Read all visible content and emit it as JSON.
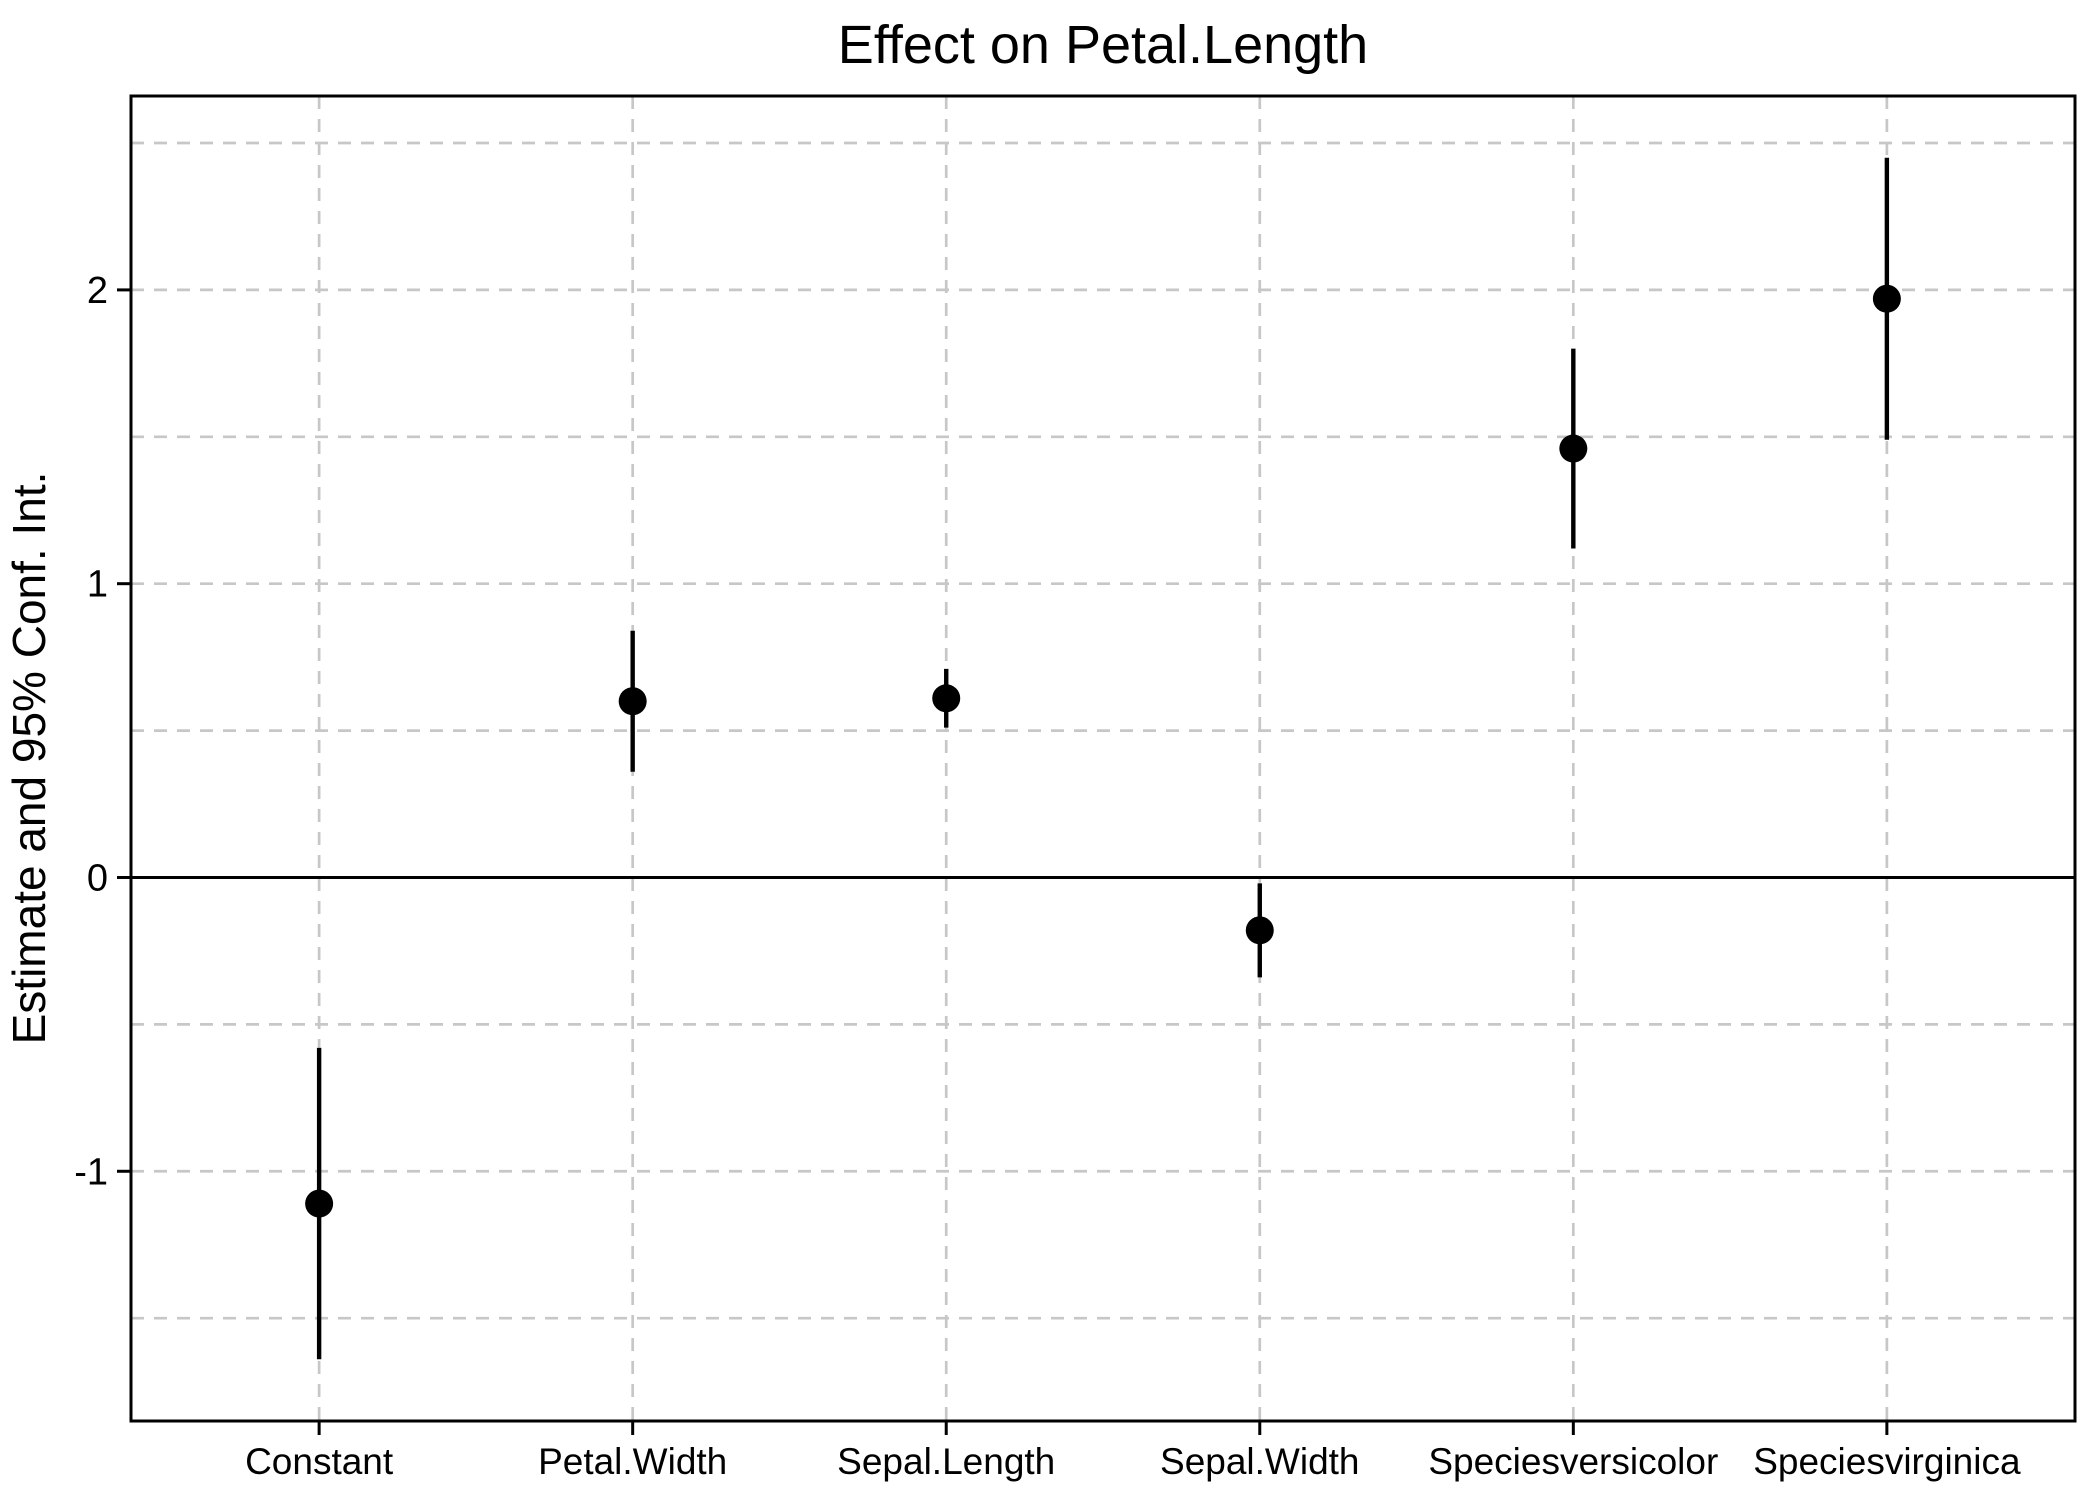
{
  "figure": {
    "title": "Effect on Petal.Length"
  },
  "chart_data": {
    "type": "scatter",
    "subtype": "coefficient-plot-pointrange",
    "title": "Effect on Petal.Length",
    "xlabel": "",
    "ylabel": "Estimate and 95% Conf. Int.",
    "categories": [
      "Constant",
      "Petal.Width",
      "Sepal.Length",
      "Sepal.Width",
      "Speciesversicolor",
      "Speciesvirginica"
    ],
    "series": [
      {
        "name": "Estimate",
        "values": [
          -1.11,
          0.6,
          0.61,
          -0.18,
          1.46,
          1.97
        ]
      },
      {
        "name": "CI lower (95%)",
        "values": [
          -1.64,
          0.36,
          0.51,
          -0.34,
          1.12,
          1.49
        ]
      },
      {
        "name": "CI upper (95%)",
        "values": [
          -0.58,
          0.84,
          0.71,
          -0.02,
          1.8,
          2.45
        ]
      }
    ],
    "ylim": [
      -1.85,
      2.66
    ],
    "y_ticks": [
      {
        "value": -1,
        "label": "-1"
      },
      {
        "value": 0,
        "label": "0"
      },
      {
        "value": 1,
        "label": "1"
      },
      {
        "value": 2,
        "label": "2"
      }
    ],
    "y_gridlines": [
      -1.5,
      -1,
      -0.5,
      0,
      0.5,
      1,
      1.5,
      2,
      2.5
    ],
    "grid": "dashed-grey-horizontal-and-vertical",
    "legend_position": "none",
    "reference_line_y": 0,
    "marker": "filled-circle",
    "colors": {
      "point": "#000000",
      "ci_bar": "#000000",
      "gridline": "#c7c7c7",
      "axis": "#000000",
      "reference_line": "#000000",
      "panel_border": "#000000",
      "background": "#ffffff",
      "text": "#000000"
    }
  }
}
